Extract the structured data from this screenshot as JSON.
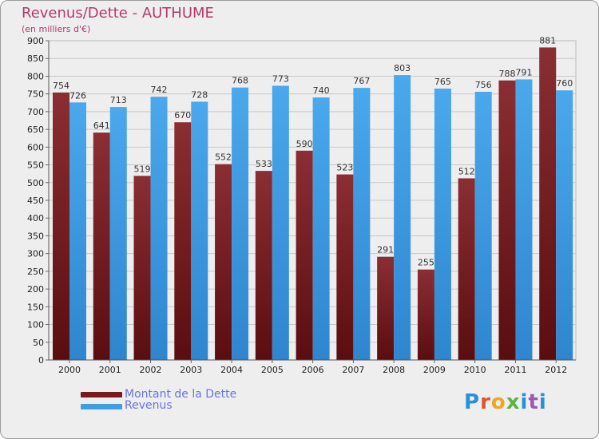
{
  "chart_data": {
    "type": "bar",
    "title": "Revenus/Dette - AUTHUME",
    "subtitle": "(en milliers d'€)",
    "categories": [
      "2000",
      "2001",
      "2002",
      "2003",
      "2004",
      "2005",
      "2006",
      "2007",
      "2008",
      "2009",
      "2010",
      "2011",
      "2012"
    ],
    "series": [
      {
        "name": "Montant de la Dette",
        "values": [
          754,
          641,
          519,
          670,
          552,
          533,
          590,
          523,
          291,
          255,
          512,
          788,
          881
        ],
        "color": "#7a1a1f"
      },
      {
        "name": "Revenus",
        "values": [
          726,
          713,
          742,
          728,
          768,
          773,
          740,
          767,
          803,
          765,
          756,
          791,
          760
        ],
        "color": "#3d9ee4"
      }
    ],
    "ylim": [
      0,
      900
    ],
    "yticks": [
      "0",
      "50",
      "100",
      "150",
      "200",
      "250",
      "300",
      "350",
      "400",
      "450",
      "500",
      "550",
      "600",
      "650",
      "700",
      "750",
      "800",
      "850",
      "900"
    ],
    "grid": true,
    "legend": "bottom-left"
  },
  "logo_text": "Proxiti"
}
